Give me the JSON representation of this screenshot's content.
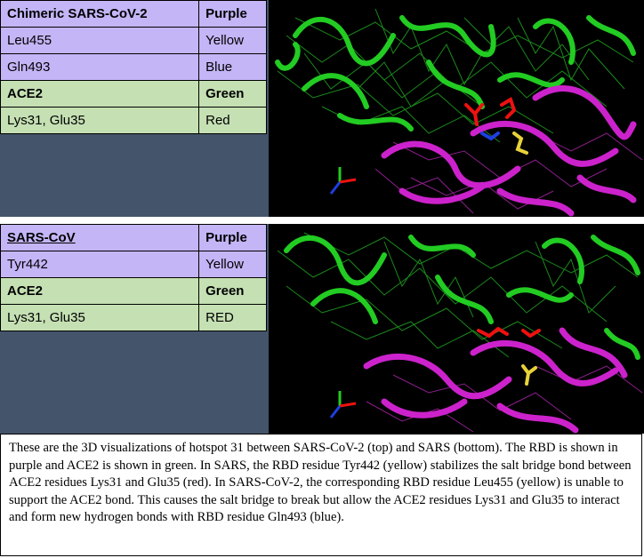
{
  "top_table": {
    "rows": [
      {
        "label": "Chimeric SARS-CoV-2",
        "color": "Purple"
      },
      {
        "label": "Leu455",
        "color": "Yellow"
      },
      {
        "label": "Gln493",
        "color": "Blue"
      },
      {
        "label": "ACE2",
        "color": "Green"
      },
      {
        "label": "Lys31, Glu35",
        "color": "Red"
      }
    ]
  },
  "bottom_table": {
    "rows": [
      {
        "label": "SARS-CoV",
        "color": "Purple"
      },
      {
        "label": "Tyr442",
        "color": "Yellow"
      },
      {
        "label": "ACE2",
        "color": "Green"
      },
      {
        "label": "Lys31, Glu35",
        "color": "RED"
      }
    ]
  },
  "colors": {
    "rbd": "#cc22cc",
    "ace2": "#22cc22",
    "residue_red": "#ee1111",
    "residue_yellow": "#e8d23a",
    "residue_blue": "#1e3fe0",
    "legend_panel": "#44546a",
    "row_purple": "#c4b5f6",
    "row_green": "#c5e0b3"
  },
  "caption": "These are the 3D visualizations of hotspot 31 between SARS-CoV-2 (top) and SARS (bottom). The RBD is shown in purple and ACE2 is shown in green. In SARS, the RBD residue Tyr442 (yellow) stabilizes the salt bridge bond between ACE2 residues Lys31 and Glu35 (red). In SARS-CoV-2, the corresponding RBD residue Leu455 (yellow) is unable to support the ACE2 bond. This causes the salt bridge to break but allow the ACE2 residues Lys31 and Glu35 to interact and form new hydrogen bonds with RBD residue Gln493 (blue)."
}
